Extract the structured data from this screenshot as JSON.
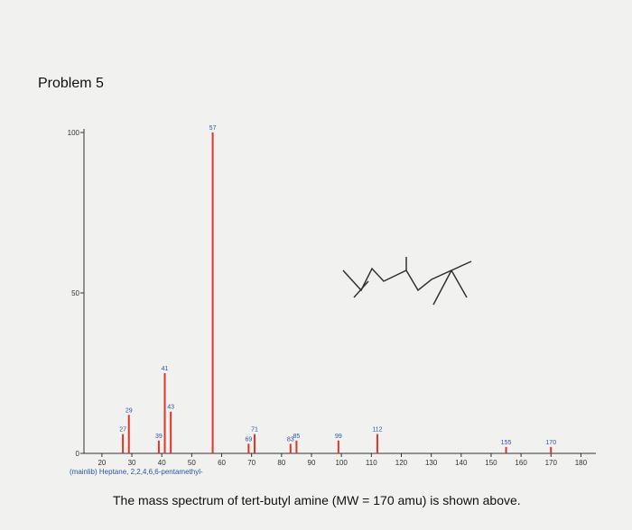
{
  "heading": "Problem 5",
  "caption": "The mass spectrum of tert-butyl amine (MW = 170 amu) is shown above.",
  "chart_data": {
    "type": "stem",
    "annotation": "(mainlib) Heptane, 2,2,4,6,6-pentamethyl-",
    "x": [
      27,
      29,
      39,
      41,
      43,
      57,
      69,
      71,
      83,
      85,
      99,
      112,
      155,
      170
    ],
    "values": [
      6,
      12,
      4,
      25,
      13,
      100,
      3,
      6,
      3,
      4,
      4,
      6,
      2,
      2
    ],
    "color": "#e0352a",
    "xlim": [
      14,
      185
    ],
    "xticks": [
      20,
      30,
      40,
      50,
      60,
      70,
      80,
      90,
      100,
      110,
      120,
      130,
      140,
      150,
      160,
      170,
      180
    ],
    "ylim": [
      0,
      100
    ],
    "yticks": [
      0,
      50,
      100
    ]
  }
}
